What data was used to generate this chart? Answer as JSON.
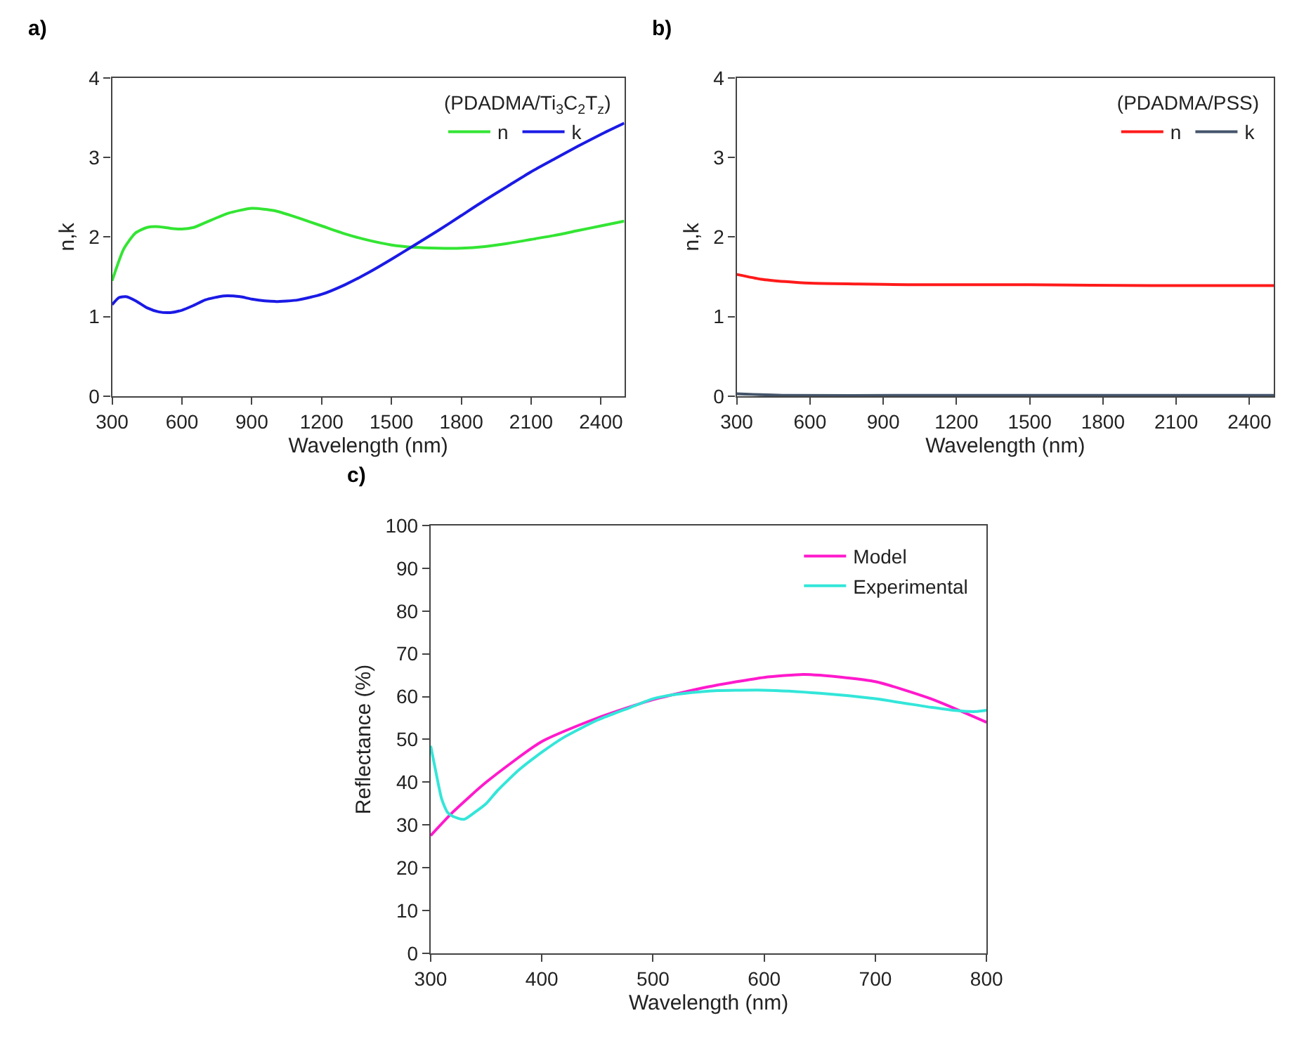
{
  "chart_data": [
    {
      "type": "line",
      "title": "a)",
      "xlabel": "Wavelength (nm)",
      "ylabel": "n,k",
      "legend_title": "(PDADMA/Ti$_{3}$C$_{2}$T$_{z}$)",
      "legend": "top right",
      "marker": "none",
      "line_style": "solid",
      "xlim": [
        300,
        2500
      ],
      "xticks": [
        300,
        600,
        900,
        1200,
        1500,
        1800,
        2100,
        2400
      ],
      "ylim": [
        0,
        4
      ],
      "yticks": [
        0,
        1,
        2,
        3,
        4
      ],
      "series": [
        {
          "name": "n",
          "color": "#33e533",
          "x": [
            300,
            350,
            400,
            450,
            500,
            550,
            600,
            650,
            700,
            800,
            900,
            1000,
            1100,
            1200,
            1300,
            1400,
            1500,
            1600,
            1700,
            1800,
            1900,
            2000,
            2100,
            2200,
            2300,
            2400,
            2500
          ],
          "values": [
            1.45,
            1.85,
            2.05,
            2.12,
            2.13,
            2.11,
            2.1,
            2.12,
            2.18,
            2.3,
            2.36,
            2.33,
            2.24,
            2.14,
            2.04,
            1.96,
            1.9,
            1.87,
            1.86,
            1.86,
            1.88,
            1.92,
            1.97,
            2.02,
            2.08,
            2.14,
            2.2
          ]
        },
        {
          "name": "k",
          "color": "#1a1ae6",
          "x": [
            300,
            330,
            360,
            400,
            450,
            500,
            550,
            600,
            650,
            700,
            780,
            850,
            900,
            1000,
            1100,
            1200,
            1300,
            1400,
            1500,
            1600,
            1700,
            1800,
            1900,
            2000,
            2100,
            2200,
            2300,
            2400,
            2500
          ],
          "values": [
            1.15,
            1.24,
            1.25,
            1.2,
            1.11,
            1.06,
            1.05,
            1.08,
            1.14,
            1.21,
            1.26,
            1.25,
            1.22,
            1.19,
            1.21,
            1.28,
            1.4,
            1.55,
            1.72,
            1.9,
            2.08,
            2.27,
            2.46,
            2.64,
            2.82,
            2.98,
            3.14,
            3.29,
            3.43
          ]
        }
      ]
    },
    {
      "type": "line",
      "title": "b)",
      "xlabel": "Wavelength (nm)",
      "ylabel": "n,k",
      "legend_title": "(PDADMA/PSS)",
      "legend": "top right",
      "marker": "none",
      "line_style": "solid",
      "xlim": [
        300,
        2500
      ],
      "xticks": [
        300,
        600,
        900,
        1200,
        1500,
        1800,
        2100,
        2400
      ],
      "ylim": [
        0,
        4
      ],
      "yticks": [
        0,
        1,
        2,
        3,
        4
      ],
      "series": [
        {
          "name": "n",
          "color": "#ff1a1a",
          "x": [
            300,
            400,
            500,
            600,
            800,
            1000,
            1500,
            2000,
            2500
          ],
          "values": [
            1.53,
            1.47,
            1.44,
            1.42,
            1.41,
            1.4,
            1.4,
            1.39,
            1.39
          ]
        },
        {
          "name": "k",
          "color": "#44546a",
          "x": [
            300,
            500,
            1000,
            2500
          ],
          "values": [
            0.03,
            0.01,
            0.01,
            0.01
          ]
        }
      ]
    },
    {
      "type": "line",
      "title": "c)",
      "xlabel": "Wavelength (nm)",
      "ylabel": "Reflectance (%)",
      "legend": "top right",
      "marker": "none",
      "line_style": "solid",
      "xlim": [
        300,
        800
      ],
      "xticks": [
        300,
        400,
        500,
        600,
        700,
        800
      ],
      "ylim": [
        0,
        100
      ],
      "yticks": [
        0,
        10,
        20,
        30,
        40,
        50,
        60,
        70,
        80,
        90,
        100
      ],
      "series": [
        {
          "name": "Model",
          "color": "#ff1acc",
          "x": [
            300,
            320,
            350,
            400,
            450,
            500,
            550,
            600,
            635,
            650,
            700,
            750,
            800
          ],
          "values": [
            27.5,
            33,
            40,
            49.5,
            55,
            59.3,
            62.3,
            64.5,
            65.2,
            65,
            63.5,
            59.5,
            54
          ]
        },
        {
          "name": "Experimental",
          "color": "#33e6d9",
          "x": [
            300,
            305,
            310,
            315,
            320,
            330,
            340,
            350,
            360,
            380,
            400,
            420,
            450,
            480,
            500,
            520,
            550,
            600,
            650,
            700,
            750,
            770,
            790,
            800
          ],
          "values": [
            48.5,
            42,
            36,
            33,
            32,
            31.3,
            33,
            35,
            38,
            43,
            47,
            50.5,
            54.5,
            57.5,
            59.5,
            60.5,
            61.3,
            61.5,
            60.8,
            59.5,
            57.5,
            56.8,
            56.5,
            56.8
          ]
        }
      ]
    }
  ]
}
